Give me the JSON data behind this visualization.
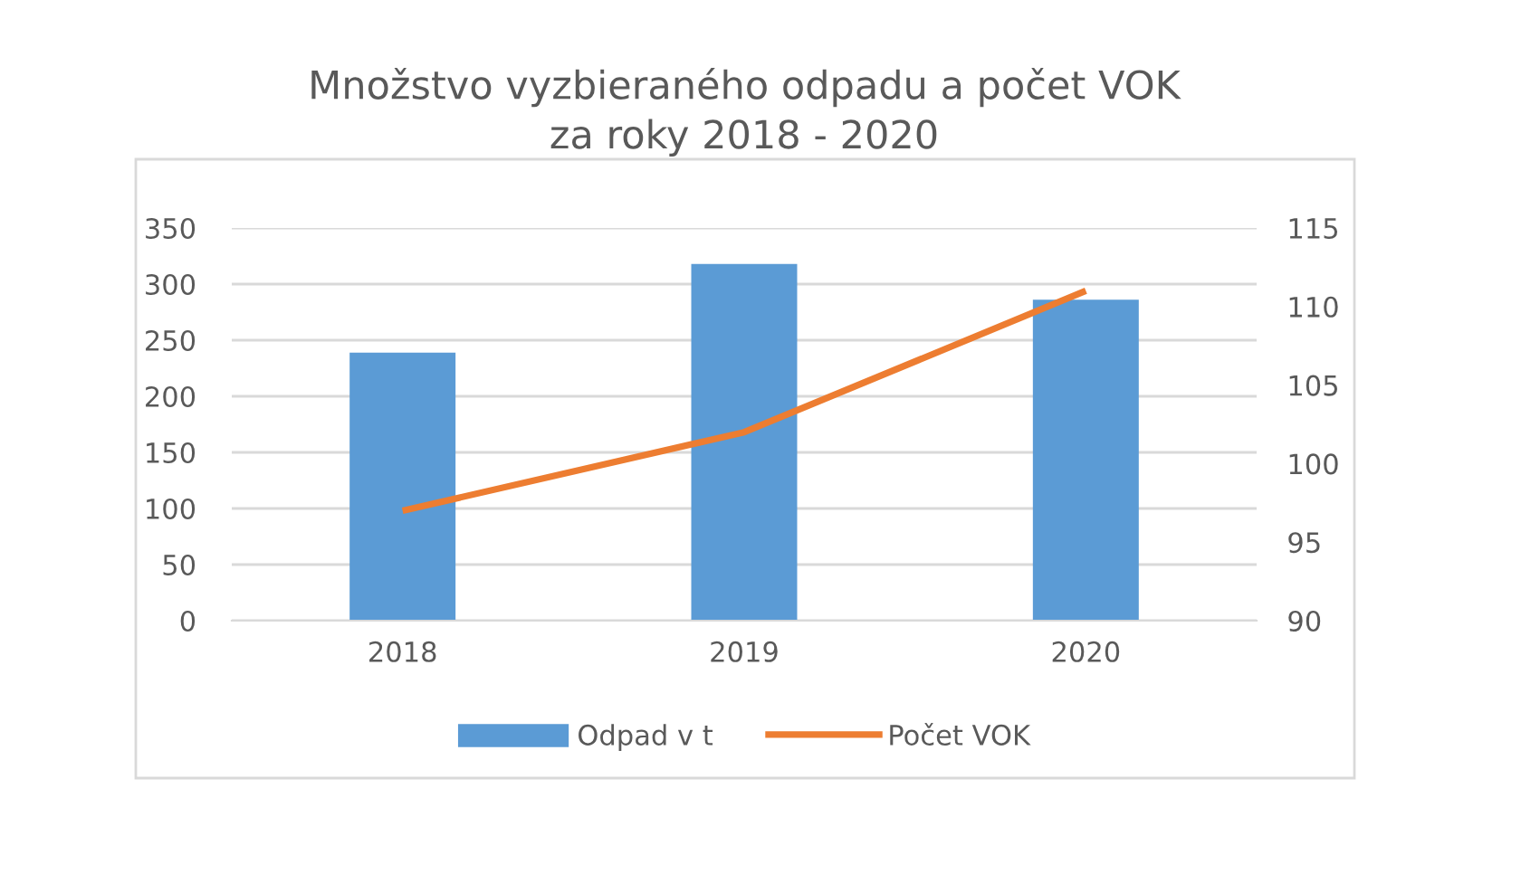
{
  "chart_data": {
    "type": "bar",
    "title": "Množstvo vyzbieraného odpadu a počet VOK\nza roky 2018 - 2020",
    "categories": [
      "2018",
      "2019",
      "2020"
    ],
    "series": [
      {
        "name": "Odpad v t",
        "color": "#5b9bd5",
        "values": [
          239,
          318,
          286
        ]
      },
      {
        "name": "Počet VOK",
        "type": "line",
        "axis": "y2",
        "color": "#ed7d31",
        "values": [
          97,
          102,
          111
        ]
      }
    ],
    "ylim": [
      0,
      350
    ],
    "yticks": [
      0,
      50,
      100,
      150,
      200,
      250,
      300,
      350
    ],
    "y2lim": [
      90,
      115
    ],
    "y2ticks": [
      90,
      95,
      100,
      105,
      110,
      115
    ],
    "grid": "y",
    "legend": "bottom",
    "marker": "none"
  }
}
